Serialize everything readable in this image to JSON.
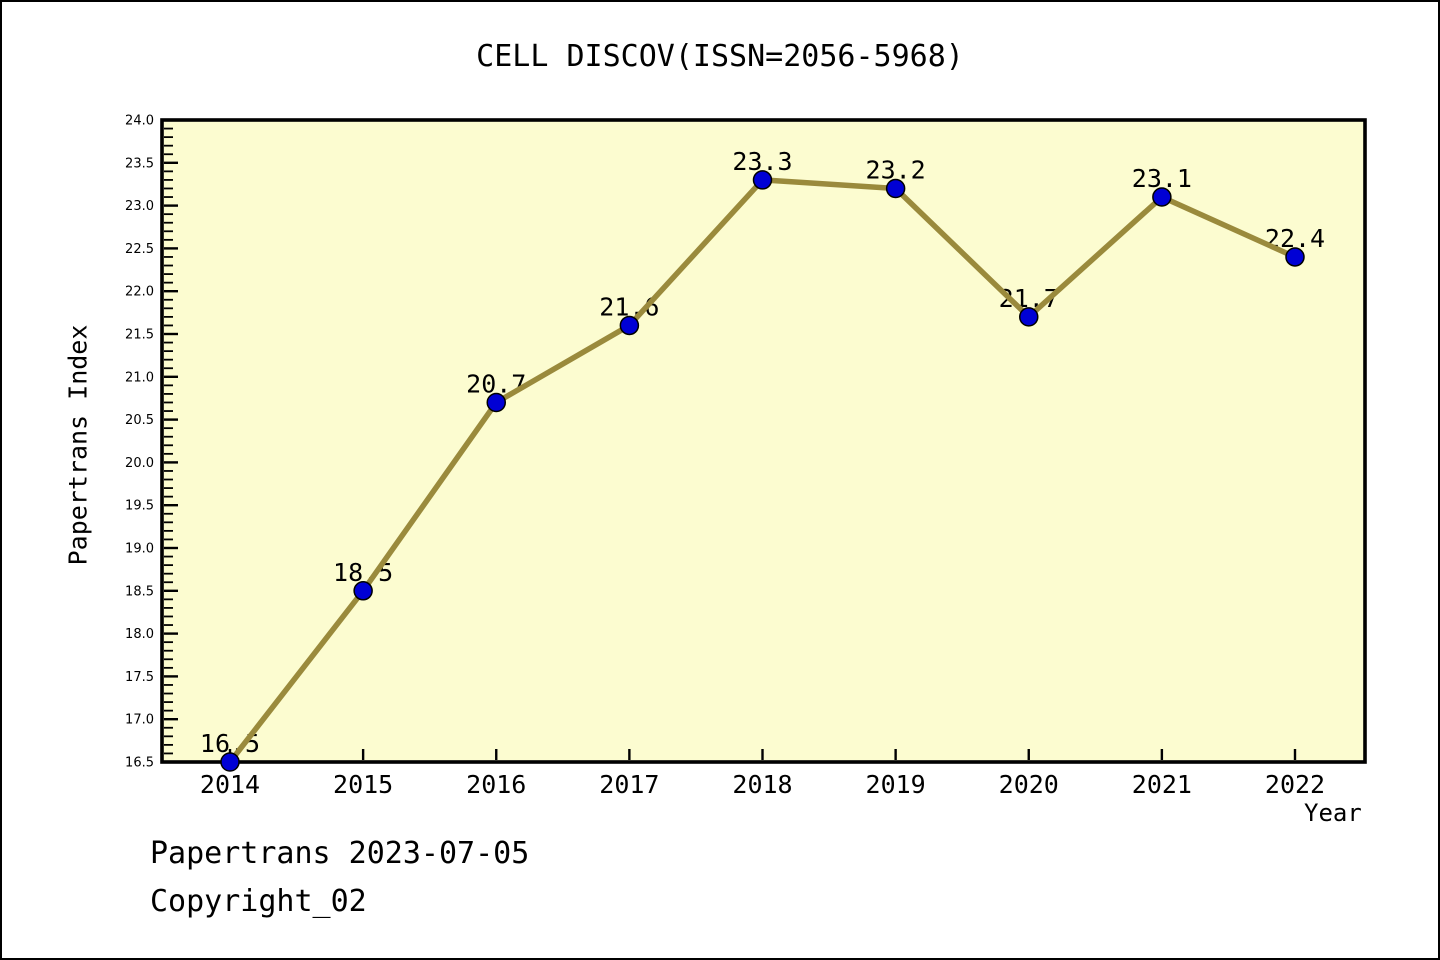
{
  "chart_data": {
    "type": "line",
    "title": "CELL DISCOV(ISSN=2056-5968)",
    "xlabel": "Year",
    "ylabel": "Papertrans Index",
    "categories": [
      "2014",
      "2015",
      "2016",
      "2017",
      "2018",
      "2019",
      "2020",
      "2021",
      "2022"
    ],
    "series": [
      {
        "name": "Papertrans Index",
        "values": [
          16.5,
          18.5,
          20.7,
          21.6,
          23.3,
          23.2,
          21.7,
          23.1,
          22.4
        ]
      }
    ],
    "point_labels": [
      "16.5",
      "18.5",
      "20.7",
      "21.6",
      "23.3",
      "23.2",
      "21.7",
      "23.1",
      "22.4"
    ],
    "ylim": [
      16.5,
      24.0
    ],
    "y_major_step": 0.5,
    "y_minor_step": 0.1,
    "grid": false,
    "legend": "none",
    "colors": {
      "line": "#9a8a3c",
      "marker": "#0000d5",
      "marker_edge": "#000000",
      "plot_bg": "#fcfcd0",
      "frame": "#000000",
      "text": "#000000"
    }
  },
  "footer": {
    "line1": "Papertrans 2023-07-05",
    "line2": "Copyright_02"
  }
}
